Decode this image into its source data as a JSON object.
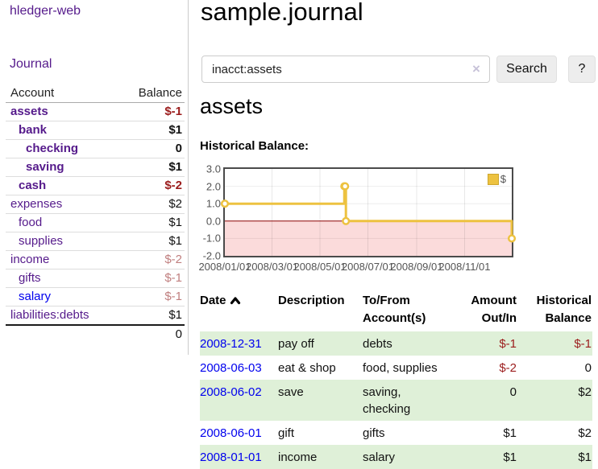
{
  "app": {
    "brand": "hledger-web"
  },
  "nav": {
    "journal": "Journal"
  },
  "sidebar": {
    "columns": {
      "account": "Account",
      "balance": "Balance"
    },
    "accounts": [
      {
        "name": "assets",
        "balance": "$-1"
      },
      {
        "name": "bank",
        "balance": "$1"
      },
      {
        "name": "checking",
        "balance": "0"
      },
      {
        "name": "saving",
        "balance": "$1"
      },
      {
        "name": "cash",
        "balance": "$-2"
      },
      {
        "name": "expenses",
        "balance": "$2"
      },
      {
        "name": "food",
        "balance": "$1"
      },
      {
        "name": "supplies",
        "balance": "$1"
      },
      {
        "name": "income",
        "balance": "$-2"
      },
      {
        "name": "gifts",
        "balance": "$-1"
      },
      {
        "name": "salary",
        "balance": "$-1"
      },
      {
        "name": "liabilities:debts",
        "balance": "$1"
      }
    ],
    "total": "0"
  },
  "main": {
    "title": "sample.journal",
    "account_heading": "assets",
    "chart_heading": "Historical Balance:"
  },
  "search": {
    "value": "inacct:assets",
    "clear_icon": "×",
    "search_button": "Search",
    "help_button": "?"
  },
  "chart_data": {
    "type": "line",
    "title": "Historical Balance",
    "steps": true,
    "series": [
      {
        "name": "$",
        "color": "#edc240",
        "points": [
          {
            "date": "2008/01/01",
            "day": 0,
            "value": 1
          },
          {
            "date": "2008/06/01",
            "day": 152,
            "value": 2
          },
          {
            "date": "2008/06/02",
            "day": 153,
            "value": 2
          },
          {
            "date": "2008/06/03",
            "day": 154,
            "value": 0
          },
          {
            "date": "2008/12/31",
            "day": 365,
            "value": -1
          }
        ]
      }
    ],
    "x_ticks": [
      {
        "day": 0,
        "label": "2008/01/01"
      },
      {
        "day": 60,
        "label": "2008/03/01"
      },
      {
        "day": 121,
        "label": "2008/05/01"
      },
      {
        "day": 182,
        "label": "2008/07/01"
      },
      {
        "day": 244,
        "label": "2008/09/01"
      },
      {
        "day": 305,
        "label": "2008/11/01"
      }
    ],
    "y_ticks": [
      {
        "value": 3,
        "label": "3.0"
      },
      {
        "value": 2,
        "label": "2.0"
      },
      {
        "value": 1,
        "label": "1.0"
      },
      {
        "value": 0,
        "label": "0.0"
      },
      {
        "value": -1,
        "label": "-1.0"
      },
      {
        "value": -2,
        "label": "-2.0"
      }
    ],
    "xlim_days": [
      0,
      365
    ],
    "ylim": [
      -2,
      3
    ],
    "grid": true,
    "negative_region_color": "#fbdbdb",
    "zero_line_color": "#8b0000",
    "legend": {
      "label": "$",
      "position": "top-right"
    }
  },
  "register": {
    "columns": {
      "date": "Date",
      "description": "Description",
      "accounts": "To/From Account(s)",
      "amount": "Amount Out/In",
      "balance": "Historical Balance"
    },
    "rows": [
      {
        "date": "2008-12-31",
        "description": "pay off",
        "accounts": "debts",
        "amount": "$-1",
        "balance": "$-1"
      },
      {
        "date": "2008-06-03",
        "description": "eat & shop",
        "accounts": "food, supplies",
        "amount": "$-2",
        "balance": "0"
      },
      {
        "date": "2008-06-02",
        "description": "save",
        "accounts": "saving, checking",
        "amount": "0",
        "balance": "$2"
      },
      {
        "date": "2008-06-01",
        "description": "gift",
        "accounts": "gifts",
        "amount": "$1",
        "balance": "$2"
      },
      {
        "date": "2008-01-01",
        "description": "income",
        "accounts": "salary",
        "amount": "$1",
        "balance": "$1"
      }
    ]
  }
}
